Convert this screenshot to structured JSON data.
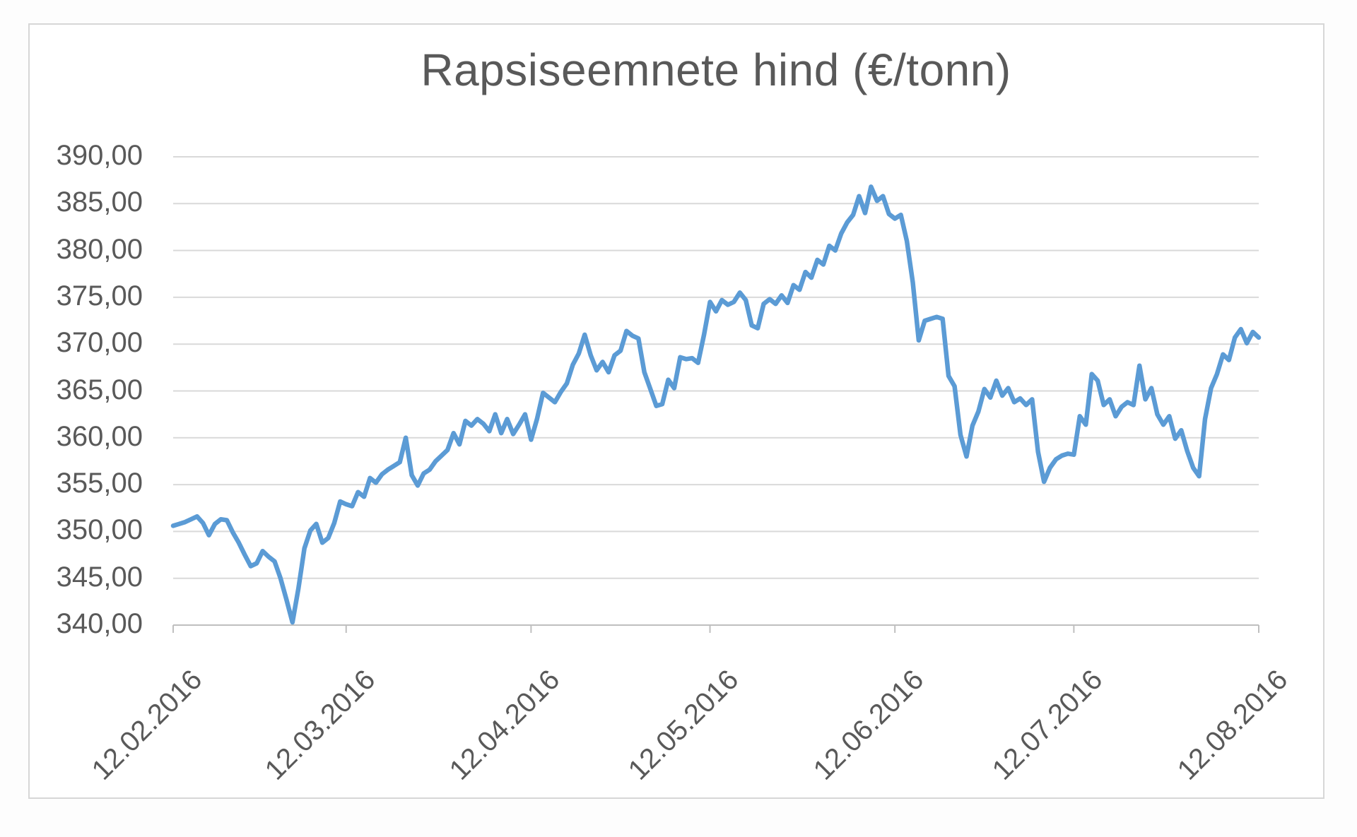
{
  "chart": {
    "title": "Rapsiseemnete hind (€/tonn)"
  },
  "chart_data": {
    "type": "line",
    "title": "Rapsiseemnete hind (€/tonn)",
    "series_name": "Rapsiseemnete hind",
    "series_color": "#5b9bd5",
    "gridline_color": "#d9d9d9",
    "axis_line_color": "#bfbfbf",
    "label_color": "#595959",
    "background_color": "#ffffff",
    "grid": "horizontal-only",
    "legend": "none",
    "y_axis": {
      "min": 340,
      "max": 390,
      "step": 5,
      "tick_labels": [
        "390,00",
        "385,00",
        "380,00",
        "375,00",
        "370,00",
        "365,00",
        "360,00",
        "355,00",
        "350,00",
        "345,00",
        "340,00"
      ]
    },
    "x_axis": {
      "tick_labels": [
        "12.02.2016",
        "12.03.2016",
        "12.04.2016",
        "12.05.2016",
        "12.06.2016",
        "12.07.2016",
        "12.08.2016"
      ],
      "tick_days": [
        0,
        29,
        60,
        90,
        121,
        151,
        182
      ],
      "total_days": 182,
      "label_rotation_deg": -45
    },
    "points": [
      [
        0,
        350.6
      ],
      [
        1,
        350.8
      ],
      [
        2,
        351.0
      ],
      [
        3,
        351.3
      ],
      [
        4,
        351.6
      ],
      [
        5,
        350.9
      ],
      [
        6,
        349.6
      ],
      [
        7,
        350.8
      ],
      [
        8,
        351.3
      ],
      [
        9,
        351.2
      ],
      [
        10,
        349.9
      ],
      [
        11,
        348.8
      ],
      [
        12,
        347.5
      ],
      [
        13,
        346.3
      ],
      [
        14,
        346.6
      ],
      [
        15,
        347.9
      ],
      [
        16,
        347.3
      ],
      [
        17,
        346.8
      ],
      [
        18,
        345.0
      ],
      [
        19,
        342.7
      ],
      [
        20,
        340.3
      ],
      [
        21,
        343.9
      ],
      [
        22,
        348.2
      ],
      [
        23,
        350.1
      ],
      [
        24,
        350.8
      ],
      [
        25,
        348.8
      ],
      [
        26,
        349.3
      ],
      [
        27,
        350.9
      ],
      [
        28,
        353.2
      ],
      [
        29,
        352.9
      ],
      [
        30,
        352.7
      ],
      [
        31,
        354.2
      ],
      [
        32,
        353.7
      ],
      [
        33,
        355.7
      ],
      [
        34,
        355.2
      ],
      [
        35,
        356.1
      ],
      [
        36,
        356.6
      ],
      [
        37,
        357.0
      ],
      [
        38,
        357.4
      ],
      [
        39,
        360.0
      ],
      [
        40,
        356.0
      ],
      [
        41,
        354.9
      ],
      [
        42,
        356.2
      ],
      [
        43,
        356.6
      ],
      [
        44,
        357.5
      ],
      [
        45,
        358.1
      ],
      [
        46,
        358.7
      ],
      [
        47,
        360.5
      ],
      [
        48,
        359.3
      ],
      [
        49,
        361.8
      ],
      [
        50,
        361.3
      ],
      [
        51,
        362.0
      ],
      [
        52,
        361.5
      ],
      [
        53,
        360.7
      ],
      [
        54,
        362.5
      ],
      [
        55,
        360.5
      ],
      [
        56,
        362.0
      ],
      [
        57,
        360.4
      ],
      [
        58,
        361.4
      ],
      [
        59,
        362.5
      ],
      [
        60,
        359.8
      ],
      [
        61,
        362.0
      ],
      [
        62,
        364.8
      ],
      [
        63,
        364.3
      ],
      [
        64,
        363.8
      ],
      [
        65,
        364.9
      ],
      [
        66,
        365.8
      ],
      [
        67,
        367.8
      ],
      [
        68,
        369.0
      ],
      [
        69,
        371.0
      ],
      [
        70,
        368.8
      ],
      [
        71,
        367.2
      ],
      [
        72,
        368.1
      ],
      [
        73,
        367.0
      ],
      [
        74,
        368.8
      ],
      [
        75,
        369.3
      ],
      [
        76,
        371.4
      ],
      [
        77,
        370.9
      ],
      [
        78,
        370.6
      ],
      [
        79,
        367.0
      ],
      [
        80,
        365.2
      ],
      [
        81,
        363.4
      ],
      [
        82,
        363.6
      ],
      [
        83,
        366.2
      ],
      [
        84,
        365.3
      ],
      [
        85,
        368.6
      ],
      [
        86,
        368.4
      ],
      [
        87,
        368.5
      ],
      [
        88,
        368.0
      ],
      [
        89,
        371.0
      ],
      [
        90,
        374.5
      ],
      [
        91,
        373.5
      ],
      [
        92,
        374.7
      ],
      [
        93,
        374.2
      ],
      [
        94,
        374.5
      ],
      [
        95,
        375.5
      ],
      [
        96,
        374.7
      ],
      [
        97,
        372.0
      ],
      [
        98,
        371.7
      ],
      [
        99,
        374.3
      ],
      [
        100,
        374.8
      ],
      [
        101,
        374.3
      ],
      [
        102,
        375.2
      ],
      [
        103,
        374.4
      ],
      [
        104,
        376.3
      ],
      [
        105,
        375.8
      ],
      [
        106,
        377.7
      ],
      [
        107,
        377.1
      ],
      [
        108,
        379.0
      ],
      [
        109,
        378.5
      ],
      [
        110,
        380.5
      ],
      [
        111,
        380.0
      ],
      [
        112,
        381.8
      ],
      [
        113,
        383.0
      ],
      [
        114,
        383.8
      ],
      [
        115,
        385.8
      ],
      [
        116,
        384.0
      ],
      [
        117,
        386.8
      ],
      [
        118,
        385.3
      ],
      [
        119,
        385.8
      ],
      [
        120,
        383.9
      ],
      [
        121,
        383.4
      ],
      [
        122,
        383.8
      ],
      [
        123,
        381.0
      ],
      [
        124,
        376.6
      ],
      [
        125,
        370.4
      ],
      [
        126,
        372.5
      ],
      [
        127,
        372.7
      ],
      [
        128,
        372.9
      ],
      [
        129,
        372.7
      ],
      [
        130,
        366.6
      ],
      [
        131,
        365.5
      ],
      [
        132,
        360.3
      ],
      [
        133,
        358.0
      ],
      [
        134,
        361.3
      ],
      [
        135,
        362.8
      ],
      [
        136,
        365.2
      ],
      [
        137,
        364.3
      ],
      [
        138,
        366.1
      ],
      [
        139,
        364.5
      ],
      [
        140,
        365.3
      ],
      [
        141,
        363.8
      ],
      [
        142,
        364.2
      ],
      [
        143,
        363.5
      ],
      [
        144,
        364.1
      ],
      [
        145,
        358.5
      ],
      [
        146,
        355.3
      ],
      [
        147,
        356.8
      ],
      [
        148,
        357.7
      ],
      [
        149,
        358.1
      ],
      [
        150,
        358.3
      ],
      [
        151,
        358.2
      ],
      [
        152,
        362.3
      ],
      [
        153,
        361.4
      ],
      [
        154,
        366.8
      ],
      [
        155,
        366.1
      ],
      [
        156,
        363.5
      ],
      [
        157,
        364.1
      ],
      [
        158,
        362.3
      ],
      [
        159,
        363.3
      ],
      [
        160,
        363.8
      ],
      [
        161,
        363.5
      ],
      [
        162,
        367.7
      ],
      [
        163,
        364.1
      ],
      [
        164,
        365.3
      ],
      [
        165,
        362.5
      ],
      [
        166,
        361.4
      ],
      [
        167,
        362.3
      ],
      [
        168,
        359.9
      ],
      [
        169,
        360.8
      ],
      [
        170,
        358.6
      ],
      [
        171,
        356.8
      ],
      [
        172,
        355.9
      ],
      [
        173,
        362.0
      ],
      [
        174,
        365.3
      ],
      [
        175,
        366.8
      ],
      [
        176,
        368.9
      ],
      [
        177,
        368.3
      ],
      [
        178,
        370.7
      ],
      [
        179,
        371.6
      ],
      [
        180,
        370.1
      ],
      [
        181,
        371.3
      ],
      [
        182,
        370.7
      ]
    ]
  }
}
